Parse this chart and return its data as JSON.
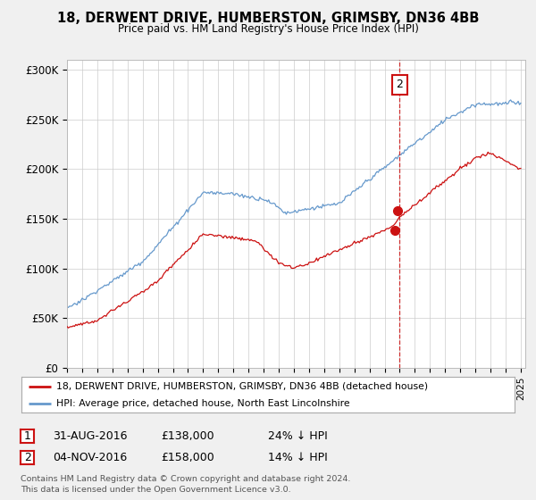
{
  "title": "18, DERWENT DRIVE, HUMBERSTON, GRIMSBY, DN36 4BB",
  "subtitle": "Price paid vs. HM Land Registry's House Price Index (HPI)",
  "bg_color": "#f0f0f0",
  "plot_bg_color": "#ffffff",
  "red_line_label": "18, DERWENT DRIVE, HUMBERSTON, GRIMSBY, DN36 4BB (detached house)",
  "blue_line_label": "HPI: Average price, detached house, North East Lincolnshire",
  "marker1_date": "31-AUG-2016",
  "marker1_price": "£138,000",
  "marker1_pct": "24% ↓ HPI",
  "marker2_date": "04-NOV-2016",
  "marker2_price": "£158,000",
  "marker2_pct": "14% ↓ HPI",
  "footer": "Contains HM Land Registry data © Crown copyright and database right 2024.\nThis data is licensed under the Open Government Licence v3.0.",
  "ylim": [
    0,
    310000
  ],
  "yticks": [
    0,
    50000,
    100000,
    150000,
    200000,
    250000,
    300000
  ],
  "ytick_labels": [
    "£0",
    "£50K",
    "£100K",
    "£150K",
    "£200K",
    "£250K",
    "£300K"
  ],
  "red_color": "#cc1111",
  "blue_color": "#6699cc",
  "vline_color": "#cc1111",
  "marker_box_color": "#cc1111",
  "sale1_year": 2016.667,
  "sale1_price": 138000,
  "sale2_year": 2016.833,
  "sale2_price": 158000,
  "vline_year": 2017.0
}
